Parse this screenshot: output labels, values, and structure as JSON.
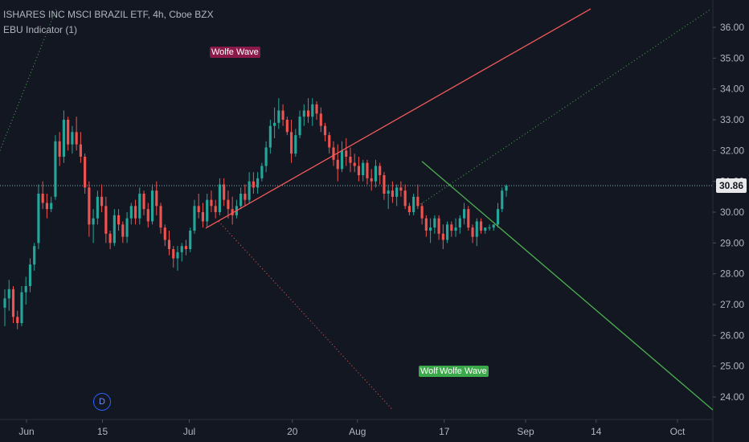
{
  "header": {
    "title": "ISHARES INC MSCI BRAZIL ETF, 4h, Cboe BZX",
    "indicator": "EBU Indicator (1)"
  },
  "wolfe_labels": {
    "top": "Wolfe Wave",
    "bottom_a": "Wolfe Wave",
    "bottom_b": "Wolfe Wave"
  },
  "badge": "D",
  "last_price_label": "30.86",
  "colors": {
    "background": "#131722",
    "up": "#26a69a",
    "down": "#ef5350",
    "red_line": "#f05a5a",
    "green_line": "#4caf50",
    "wolfe_top_bg": "#8b1a4a",
    "wolfe_bottom_bg": "#3ba84a",
    "last_price_line": "#7fb3b8"
  },
  "chart_data": {
    "type": "candlestick",
    "timeframe": "4h",
    "y_axis": {
      "side": "right",
      "range": [
        23.6,
        36.6
      ],
      "ticks": [
        "24.00",
        "25.00",
        "26.00",
        "27.00",
        "28.00",
        "29.00",
        "30.00",
        "31.00",
        "32.00",
        "33.00",
        "34.00",
        "35.00",
        "36.00"
      ]
    },
    "x_axis": {
      "tick_labels": [
        "Jun",
        "15",
        "Jul",
        "20",
        "Aug",
        "17",
        "Sep",
        "14",
        "Oct"
      ],
      "tick_positions_days": [
        0,
        14,
        30,
        49,
        61,
        77,
        92,
        105,
        120
      ]
    },
    "last_price": 30.86,
    "candles": [
      [
        26.9,
        27.5,
        26.3,
        27.2
      ],
      [
        27.2,
        27.8,
        26.8,
        27.5
      ],
      [
        27.5,
        27.6,
        26.4,
        26.6
      ],
      [
        26.6,
        26.8,
        26.2,
        26.4
      ],
      [
        26.4,
        27.6,
        26.3,
        27.4
      ],
      [
        27.4,
        27.9,
        27.0,
        27.6
      ],
      [
        27.6,
        28.5,
        27.4,
        28.3
      ],
      [
        28.3,
        29.0,
        28.1,
        28.9
      ],
      [
        29.0,
        30.9,
        28.8,
        30.6
      ],
      [
        30.6,
        31.0,
        30.1,
        30.3
      ],
      [
        30.3,
        30.6,
        29.8,
        30.1
      ],
      [
        30.1,
        30.5,
        30.0,
        30.3
      ],
      [
        30.5,
        32.5,
        30.4,
        32.3
      ],
      [
        32.3,
        32.6,
        31.5,
        31.8
      ],
      [
        31.8,
        33.3,
        31.6,
        33.0
      ],
      [
        33.0,
        33.1,
        32.0,
        32.2
      ],
      [
        32.2,
        32.8,
        31.9,
        32.6
      ],
      [
        32.6,
        33.1,
        32.0,
        32.2
      ],
      [
        32.2,
        32.6,
        31.6,
        31.8
      ],
      [
        31.8,
        31.9,
        30.6,
        30.8
      ],
      [
        30.8,
        31.0,
        29.2,
        29.6
      ],
      [
        29.6,
        30.1,
        29.0,
        29.8
      ],
      [
        29.8,
        30.7,
        29.6,
        30.5
      ],
      [
        30.5,
        30.9,
        30.0,
        30.2
      ],
      [
        30.2,
        30.5,
        29.0,
        29.3
      ],
      [
        29.3,
        29.4,
        28.8,
        29.0
      ],
      [
        29.0,
        30.1,
        28.9,
        29.9
      ],
      [
        29.9,
        30.1,
        29.4,
        29.6
      ],
      [
        29.6,
        29.7,
        29.0,
        29.2
      ],
      [
        29.2,
        30.0,
        29.0,
        29.8
      ],
      [
        29.8,
        30.3,
        29.6,
        30.2
      ],
      [
        30.2,
        30.4,
        29.6,
        29.8
      ],
      [
        29.8,
        30.8,
        29.6,
        30.6
      ],
      [
        30.6,
        30.7,
        29.9,
        30.1
      ],
      [
        30.1,
        30.3,
        29.5,
        29.7
      ],
      [
        29.7,
        30.9,
        29.6,
        30.7
      ],
      [
        30.7,
        31.0,
        29.9,
        30.2
      ],
      [
        30.2,
        30.3,
        29.3,
        29.5
      ],
      [
        29.5,
        29.6,
        28.9,
        29.1
      ],
      [
        29.1,
        29.4,
        28.6,
        28.8
      ],
      [
        28.8,
        28.9,
        28.2,
        28.5
      ],
      [
        28.5,
        28.9,
        28.1,
        28.7
      ],
      [
        28.7,
        29.0,
        28.4,
        28.9
      ],
      [
        28.9,
        29.1,
        28.6,
        28.8
      ],
      [
        28.8,
        29.5,
        28.7,
        29.4
      ],
      [
        29.4,
        30.4,
        29.3,
        30.2
      ],
      [
        30.2,
        30.6,
        29.8,
        30.0
      ],
      [
        30.0,
        30.3,
        29.5,
        29.7
      ],
      [
        29.7,
        30.6,
        29.5,
        30.4
      ],
      [
        30.4,
        30.7,
        30.0,
        30.2
      ],
      [
        30.2,
        30.4,
        29.8,
        30.0
      ],
      [
        30.0,
        31.1,
        29.9,
        30.9
      ],
      [
        30.9,
        31.1,
        30.2,
        30.4
      ],
      [
        30.4,
        30.7,
        29.8,
        30.1
      ],
      [
        30.1,
        30.5,
        29.6,
        29.9
      ],
      [
        29.9,
        30.4,
        29.8,
        30.2
      ],
      [
        30.2,
        30.8,
        30.1,
        30.6
      ],
      [
        30.6,
        30.9,
        30.2,
        30.4
      ],
      [
        30.4,
        31.3,
        30.3,
        31.0
      ],
      [
        31.0,
        31.3,
        30.6,
        30.8
      ],
      [
        30.8,
        31.3,
        30.6,
        31.1
      ],
      [
        31.1,
        31.6,
        31.0,
        31.5
      ],
      [
        31.5,
        32.3,
        31.3,
        32.1
      ],
      [
        32.1,
        33.0,
        31.9,
        32.8
      ],
      [
        32.8,
        33.4,
        32.4,
        32.9
      ],
      [
        32.9,
        33.7,
        32.7,
        33.3
      ],
      [
        33.3,
        33.5,
        32.8,
        33.0
      ],
      [
        33.0,
        33.1,
        32.5,
        32.6
      ],
      [
        32.6,
        33.0,
        31.6,
        31.9
      ],
      [
        31.9,
        32.7,
        31.8,
        32.5
      ],
      [
        32.5,
        33.3,
        32.4,
        33.1
      ],
      [
        33.1,
        33.5,
        32.8,
        33.3
      ],
      [
        33.3,
        33.7,
        32.9,
        33.1
      ],
      [
        33.1,
        33.7,
        32.8,
        33.5
      ],
      [
        33.5,
        33.6,
        33.0,
        33.2
      ],
      [
        33.2,
        33.4,
        32.6,
        32.8
      ],
      [
        32.8,
        32.9,
        32.3,
        32.5
      ],
      [
        32.5,
        32.6,
        31.9,
        32.1
      ],
      [
        32.1,
        32.3,
        31.5,
        31.7
      ],
      [
        31.7,
        32.2,
        31.0,
        31.4
      ],
      [
        31.4,
        32.3,
        31.3,
        32.0
      ],
      [
        32.0,
        32.4,
        31.5,
        31.8
      ],
      [
        31.8,
        32.1,
        31.3,
        31.6
      ],
      [
        31.6,
        31.9,
        31.3,
        31.5
      ],
      [
        31.5,
        31.8,
        31.0,
        31.2
      ],
      [
        31.2,
        31.7,
        31.0,
        31.6
      ],
      [
        31.6,
        31.7,
        30.9,
        31.1
      ],
      [
        31.1,
        31.4,
        30.7,
        31.0
      ],
      [
        31.0,
        31.7,
        30.8,
        31.5
      ],
      [
        31.5,
        31.6,
        30.9,
        31.2
      ],
      [
        31.2,
        31.3,
        30.4,
        30.6
      ],
      [
        30.6,
        30.9,
        30.1,
        30.7
      ],
      [
        30.7,
        31.0,
        30.3,
        30.5
      ],
      [
        30.5,
        30.9,
        30.2,
        30.8
      ],
      [
        30.8,
        31.0,
        30.5,
        30.7
      ],
      [
        30.7,
        30.9,
        30.1,
        30.2
      ],
      [
        30.2,
        30.3,
        29.9,
        30.0
      ],
      [
        30.0,
        30.6,
        29.9,
        30.5
      ],
      [
        30.5,
        30.9,
        30.1,
        30.2
      ],
      [
        30.2,
        30.3,
        29.6,
        29.8
      ],
      [
        29.8,
        29.9,
        29.2,
        29.4
      ],
      [
        29.4,
        29.8,
        29.0,
        29.5
      ],
      [
        29.5,
        29.9,
        29.3,
        29.8
      ],
      [
        29.8,
        29.9,
        29.1,
        29.3
      ],
      [
        29.3,
        29.6,
        28.8,
        29.1
      ],
      [
        29.1,
        29.7,
        29.0,
        29.6
      ],
      [
        29.6,
        29.7,
        29.2,
        29.4
      ],
      [
        29.4,
        29.8,
        29.2,
        29.5
      ],
      [
        29.5,
        29.9,
        29.3,
        29.8
      ],
      [
        29.8,
        30.3,
        29.6,
        30.1
      ],
      [
        30.1,
        30.2,
        29.4,
        29.5
      ],
      [
        29.5,
        29.6,
        29.0,
        29.2
      ],
      [
        29.2,
        29.8,
        28.9,
        29.7
      ],
      [
        29.7,
        29.8,
        29.3,
        29.4
      ],
      [
        29.4,
        29.5,
        29.3,
        29.5
      ],
      [
        29.5,
        29.6,
        29.4,
        29.5
      ],
      [
        29.5,
        29.6,
        29.4,
        29.6
      ],
      [
        29.6,
        30.3,
        29.5,
        30.1
      ],
      [
        30.1,
        30.8,
        30.0,
        30.7
      ],
      [
        30.7,
        30.9,
        30.5,
        30.86
      ]
    ]
  }
}
